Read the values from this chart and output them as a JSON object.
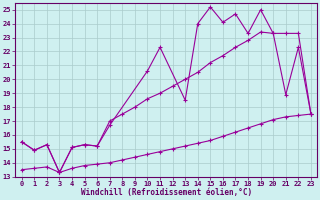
{
  "xlabel": "Windchill (Refroidissement éolien,°C)",
  "bg_color": "#cff0f0",
  "line_color": "#990099",
  "xlim": [
    -0.5,
    23.5
  ],
  "ylim": [
    13,
    25.5
  ],
  "xticks": [
    0,
    1,
    2,
    3,
    4,
    5,
    6,
    7,
    8,
    9,
    10,
    11,
    12,
    13,
    14,
    15,
    16,
    17,
    18,
    19,
    20,
    21,
    22,
    23
  ],
  "yticks": [
    13,
    14,
    15,
    16,
    17,
    18,
    19,
    20,
    21,
    22,
    23,
    24,
    25
  ],
  "series1_x": [
    0,
    1,
    2,
    3,
    4,
    5,
    6,
    7,
    10,
    11,
    13,
    14,
    15,
    16,
    17,
    18,
    19,
    20,
    21,
    22,
    23
  ],
  "series1_y": [
    15.5,
    14.9,
    15.3,
    13.3,
    15.1,
    15.3,
    15.2,
    16.7,
    20.6,
    22.3,
    18.5,
    24.0,
    25.2,
    24.1,
    24.7,
    23.3,
    25.0,
    23.3,
    18.9,
    22.3,
    17.5
  ],
  "series2_x": [
    0,
    1,
    2,
    3,
    4,
    5,
    6,
    7,
    8,
    9,
    10,
    11,
    12,
    13,
    14,
    15,
    16,
    17,
    18,
    19,
    20,
    21,
    22,
    23
  ],
  "series2_y": [
    15.5,
    14.9,
    15.3,
    13.3,
    15.1,
    15.3,
    15.2,
    17.0,
    17.5,
    18.0,
    18.6,
    19.0,
    19.5,
    20.0,
    20.5,
    21.2,
    21.7,
    22.3,
    22.8,
    23.4,
    23.3,
    23.3,
    23.3,
    17.5
  ],
  "series3_x": [
    0,
    1,
    2,
    3,
    4,
    5,
    6,
    7,
    8,
    9,
    10,
    11,
    12,
    13,
    14,
    15,
    16,
    17,
    18,
    19,
    20,
    21,
    22,
    23
  ],
  "series3_y": [
    13.5,
    13.6,
    13.7,
    13.3,
    13.6,
    13.8,
    13.9,
    14.0,
    14.2,
    14.4,
    14.6,
    14.8,
    15.0,
    15.2,
    15.4,
    15.6,
    15.9,
    16.2,
    16.5,
    16.8,
    17.1,
    17.3,
    17.4,
    17.5
  ],
  "grid_color": "#aacccc",
  "tick_color": "#660066",
  "label_fontsize": 5.0,
  "xlabel_fontsize": 5.5
}
